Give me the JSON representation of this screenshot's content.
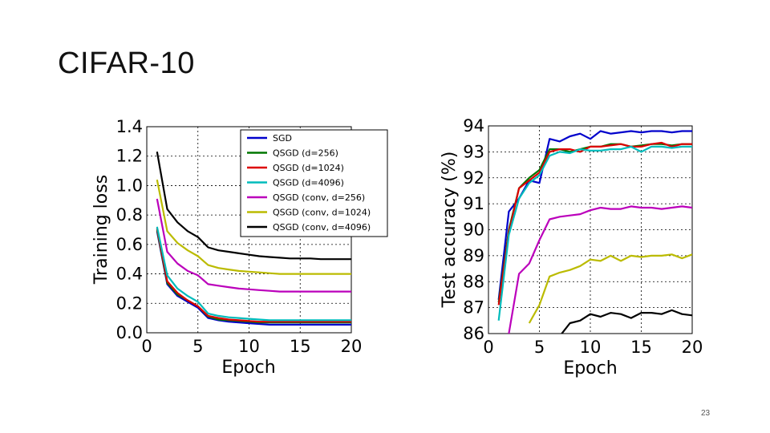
{
  "slide": {
    "title": "CIFAR-10",
    "page_number": "23"
  },
  "legend_entries": [
    "SGD",
    "QSGD (d=256)",
    "QSGD (d=1024)",
    "QSGD (d=4096)",
    "QSGD (conv, d=256)",
    "QSGD (conv, d=1024)",
    "QSGD (conv, d=4096)"
  ],
  "chart_data": [
    {
      "type": "line",
      "title": "",
      "xlabel": "Epoch",
      "ylabel": "Training loss",
      "xlim": [
        0,
        20
      ],
      "ylim": [
        0.0,
        1.4
      ],
      "xticks": [
        "0",
        "5",
        "10",
        "15",
        "20"
      ],
      "yticks": [
        "0.0",
        "0.2",
        "0.4",
        "0.6",
        "0.8",
        "1.0",
        "1.2",
        "1.4"
      ],
      "grid": true,
      "legend_position": "top-right",
      "x": [
        1,
        2,
        3,
        4,
        5,
        6,
        7,
        8,
        9,
        10,
        11,
        12,
        13,
        14,
        15,
        16,
        17,
        18,
        19,
        20
      ],
      "series": [
        {
          "name": "SGD",
          "color": "#0000cc",
          "values": [
            0.69,
            0.33,
            0.25,
            0.21,
            0.17,
            0.1,
            0.085,
            0.075,
            0.07,
            0.065,
            0.06,
            0.055,
            0.055,
            0.055,
            0.055,
            0.055,
            0.055,
            0.055,
            0.055,
            0.055
          ]
        },
        {
          "name": "QSGD (d=256)",
          "color": "#007700",
          "values": [
            0.7,
            0.34,
            0.26,
            0.22,
            0.18,
            0.11,
            0.09,
            0.085,
            0.08,
            0.075,
            0.07,
            0.07,
            0.07,
            0.07,
            0.07,
            0.07,
            0.07,
            0.07,
            0.07,
            0.07
          ]
        },
        {
          "name": "QSGD (d=1024)",
          "color": "#dd0000",
          "values": [
            0.71,
            0.35,
            0.27,
            0.22,
            0.18,
            0.115,
            0.1,
            0.09,
            0.085,
            0.08,
            0.075,
            0.075,
            0.075,
            0.075,
            0.075,
            0.075,
            0.075,
            0.075,
            0.075,
            0.075
          ]
        },
        {
          "name": "QSGD (d=4096)",
          "color": "#00bbbb",
          "values": [
            0.72,
            0.39,
            0.3,
            0.25,
            0.21,
            0.13,
            0.115,
            0.105,
            0.1,
            0.095,
            0.09,
            0.085,
            0.085,
            0.085,
            0.085,
            0.085,
            0.085,
            0.085,
            0.085,
            0.085
          ]
        },
        {
          "name": "QSGD (conv, d=256)",
          "color": "#bb00bb",
          "values": [
            0.91,
            0.55,
            0.47,
            0.42,
            0.39,
            0.33,
            0.32,
            0.31,
            0.3,
            0.295,
            0.29,
            0.285,
            0.28,
            0.28,
            0.28,
            0.28,
            0.28,
            0.28,
            0.28,
            0.28
          ]
        },
        {
          "name": "QSGD (conv, d=1024)",
          "color": "#bbbb00",
          "values": [
            1.04,
            0.69,
            0.61,
            0.56,
            0.52,
            0.46,
            0.44,
            0.43,
            0.42,
            0.415,
            0.41,
            0.405,
            0.4,
            0.4,
            0.4,
            0.4,
            0.4,
            0.4,
            0.4,
            0.4
          ]
        },
        {
          "name": "QSGD (conv, d=4096)",
          "color": "#000000",
          "values": [
            1.23,
            0.84,
            0.75,
            0.69,
            0.65,
            0.58,
            0.56,
            0.55,
            0.54,
            0.53,
            0.52,
            0.515,
            0.51,
            0.505,
            0.505,
            0.505,
            0.5,
            0.5,
            0.5,
            0.5
          ]
        }
      ]
    },
    {
      "type": "line",
      "title": "",
      "xlabel": "Epoch",
      "ylabel": "Test accuracy (%)",
      "xlim": [
        0,
        20
      ],
      "ylim": [
        86,
        94
      ],
      "xticks": [
        "0",
        "5",
        "10",
        "15",
        "20"
      ],
      "yticks": [
        "86",
        "87",
        "88",
        "89",
        "90",
        "91",
        "92",
        "93",
        "94"
      ],
      "grid": true,
      "x": [
        1,
        2,
        3,
        4,
        5,
        6,
        7,
        8,
        9,
        10,
        11,
        12,
        13,
        14,
        15,
        16,
        17,
        18,
        19,
        20
      ],
      "series": [
        {
          "name": "SGD",
          "color": "#0000cc",
          "values": [
            87.3,
            90.7,
            91.2,
            91.9,
            91.8,
            93.5,
            93.4,
            93.6,
            93.7,
            93.5,
            93.8,
            93.7,
            93.75,
            93.8,
            93.75,
            93.8,
            93.8,
            93.75,
            93.8,
            93.8
          ]
        },
        {
          "name": "QSGD (d=256)",
          "color": "#007700",
          "values": [
            87.2,
            90.0,
            91.6,
            92.0,
            92.3,
            93.1,
            93.1,
            93.0,
            93.1,
            93.2,
            93.2,
            93.3,
            93.3,
            93.2,
            93.25,
            93.3,
            93.3,
            93.25,
            93.3,
            93.3
          ]
        },
        {
          "name": "QSGD (d=1024)",
          "color": "#dd0000",
          "values": [
            87.1,
            89.9,
            91.6,
            91.9,
            92.2,
            93.0,
            93.1,
            93.1,
            93.0,
            93.2,
            93.2,
            93.25,
            93.3,
            93.2,
            93.2,
            93.3,
            93.35,
            93.2,
            93.3,
            93.3
          ]
        },
        {
          "name": "QSGD (d=4096)",
          "color": "#00bbbb",
          "values": [
            86.5,
            89.8,
            91.2,
            91.8,
            92.1,
            92.85,
            93.0,
            92.95,
            93.1,
            93.05,
            93.05,
            93.1,
            93.1,
            93.2,
            93.0,
            93.2,
            93.2,
            93.15,
            93.2,
            93.2
          ]
        },
        {
          "name": "QSGD (conv, d=256)",
          "color": "#bb00bb",
          "values": [
            null,
            86.0,
            88.3,
            88.7,
            89.6,
            90.4,
            90.5,
            90.55,
            90.6,
            90.75,
            90.85,
            90.8,
            90.8,
            90.9,
            90.85,
            90.85,
            90.8,
            90.85,
            90.9,
            90.85
          ]
        },
        {
          "name": "QSGD (conv, d=1024)",
          "color": "#bbbb00",
          "values": [
            null,
            null,
            null,
            86.4,
            87.1,
            88.2,
            88.35,
            88.45,
            88.6,
            88.85,
            88.8,
            89.0,
            88.8,
            89.0,
            88.95,
            89.0,
            89.0,
            89.05,
            88.9,
            89.05
          ]
        },
        {
          "name": "QSGD (conv, d=4096)",
          "color": "#000000",
          "values": [
            null,
            null,
            null,
            null,
            null,
            null,
            85.9,
            86.4,
            86.5,
            86.75,
            86.65,
            86.8,
            86.75,
            86.6,
            86.8,
            86.8,
            86.75,
            86.9,
            86.75,
            86.7
          ]
        }
      ]
    }
  ]
}
